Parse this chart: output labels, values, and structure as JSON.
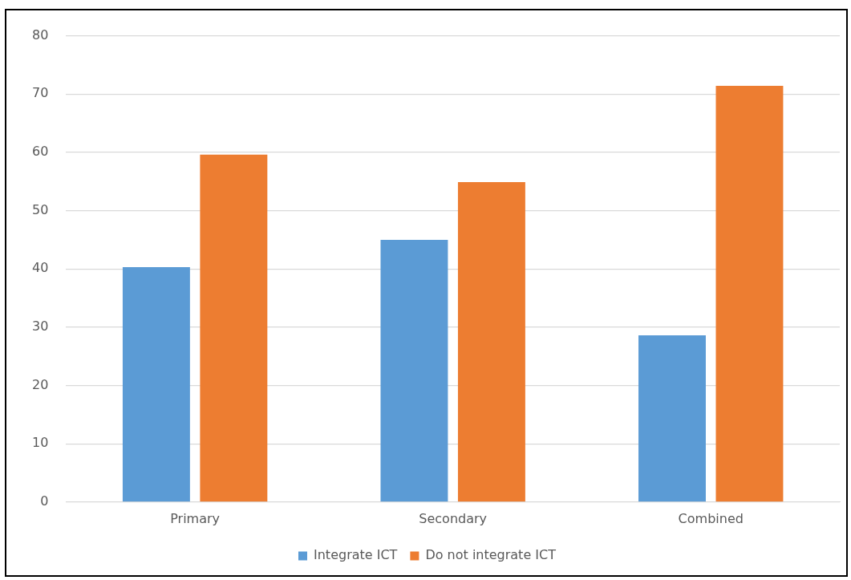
{
  "chart_data": {
    "type": "bar",
    "categories": [
      "Primary",
      "Secondary",
      "Combined"
    ],
    "series": [
      {
        "name": "Integrate ICT",
        "color": "#5b9bd5",
        "values": [
          40.3,
          45.0,
          28.6
        ]
      },
      {
        "name": "Do not integrate ICT",
        "color": "#ed7d31",
        "values": [
          59.6,
          54.9,
          71.4
        ]
      }
    ],
    "ylim": [
      0,
      80
    ],
    "yticks": [
      0,
      10,
      20,
      30,
      40,
      50,
      60,
      70,
      80
    ],
    "grid": "y",
    "legend": "bottom"
  }
}
